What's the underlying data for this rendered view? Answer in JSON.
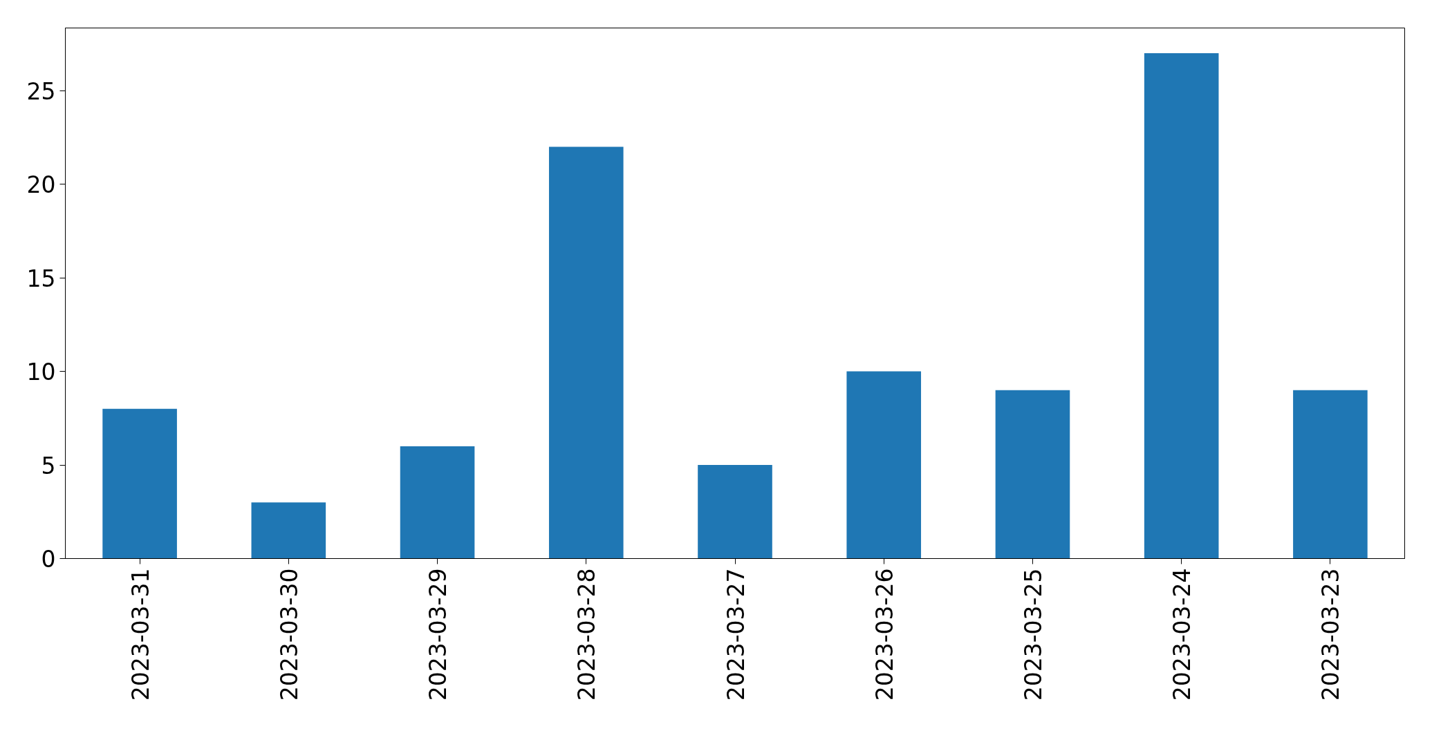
{
  "chart_data": {
    "type": "bar",
    "categories": [
      "2023-03-31",
      "2023-03-30",
      "2023-03-29",
      "2023-03-28",
      "2023-03-27",
      "2023-03-26",
      "2023-03-25",
      "2023-03-24",
      "2023-03-23"
    ],
    "values": [
      8,
      3,
      6,
      22,
      5,
      10,
      9,
      27,
      9
    ],
    "color": "#1f77b4",
    "ylim": [
      0,
      28.35
    ],
    "yticks": [
      0,
      5,
      10,
      15,
      20,
      25
    ]
  }
}
